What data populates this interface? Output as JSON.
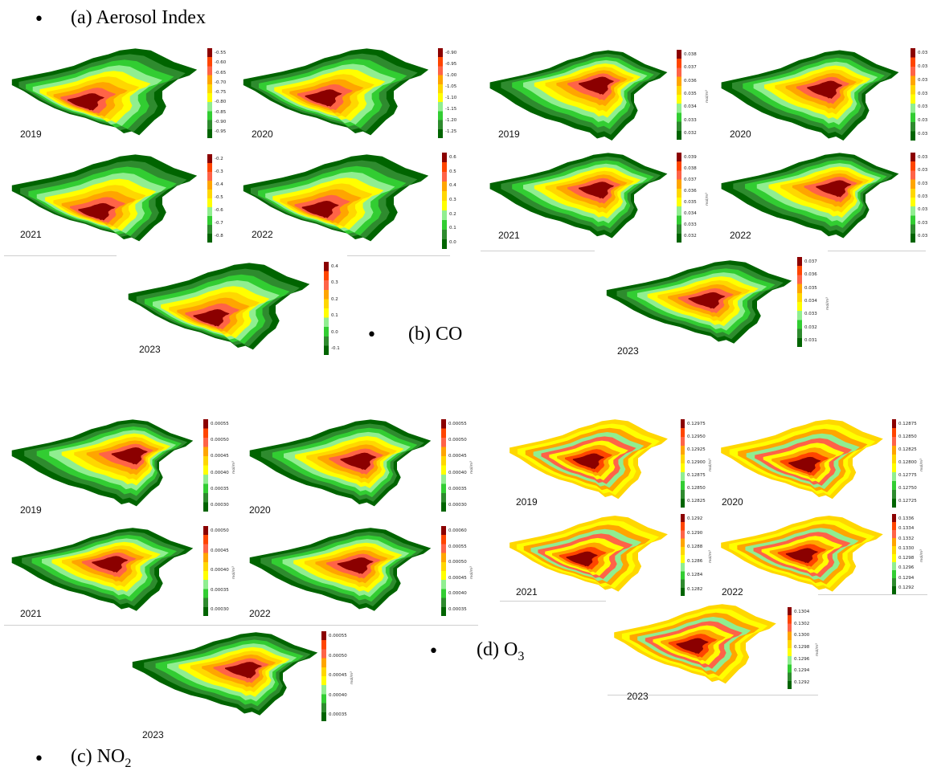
{
  "headings": {
    "aerosol": "(a) Aerosol Index",
    "co": "(b) CO",
    "no2_prefix": "(c) NO",
    "no2_sub": "2",
    "o3_prefix": "(d) O",
    "o3_sub": "3"
  },
  "palette": [
    "#006400",
    "#2e8b2e",
    "#32cd32",
    "#90ee90",
    "#ffff00",
    "#ffd700",
    "#ffa500",
    "#ff6347",
    "#ff4500",
    "#8b0000"
  ],
  "unit_label": "mol/m²",
  "groups": [
    {
      "id": "aerosol",
      "panels": [
        {
          "year": "2019",
          "ticks": [
            "-0.55",
            "-0.60",
            "-0.65",
            "-0.70",
            "-0.75",
            "-0.80",
            "-0.85",
            "-0.90",
            "-0.95"
          ]
        },
        {
          "year": "2020",
          "ticks": [
            "-0.90",
            "-0.95",
            "-1.00",
            "-1.05",
            "-1.10",
            "-1.15",
            "-1.20",
            "-1.25"
          ]
        },
        {
          "year": "2021",
          "ticks": [
            "-0.2",
            "-0.3",
            "-0.4",
            "-0.5",
            "-0.6",
            "-0.7",
            "-0.8"
          ]
        },
        {
          "year": "2022",
          "ticks": [
            "0.6",
            "0.5",
            "0.4",
            "0.3",
            "0.2",
            "0.1",
            "0.0"
          ]
        },
        {
          "year": "2023",
          "ticks": [
            "0.4",
            "0.3",
            "0.2",
            "0.1",
            "0.0",
            "-0.1"
          ]
        }
      ]
    },
    {
      "id": "co",
      "panels": [
        {
          "year": "2019",
          "ticks": [
            "0.038",
            "0.037",
            "0.036",
            "0.035",
            "0.034",
            "0.033",
            "0.032"
          ]
        },
        {
          "year": "2020",
          "ticks": [
            "0.03",
            "0.03",
            "0.03",
            "0.03",
            "0.03",
            "0.03",
            "0.03"
          ]
        },
        {
          "year": "2021",
          "ticks": [
            "0.039",
            "0.038",
            "0.037",
            "0.036",
            "0.035",
            "0.034",
            "0.033",
            "0.032"
          ]
        },
        {
          "year": "2022",
          "ticks": [
            "0.03",
            "0.03",
            "0.03",
            "0.03",
            "0.03",
            "0.03",
            "0.03"
          ]
        },
        {
          "year": "2023",
          "ticks": [
            "0.037",
            "0.036",
            "0.035",
            "0.034",
            "0.033",
            "0.032",
            "0.031"
          ]
        }
      ]
    },
    {
      "id": "no2",
      "panels": [
        {
          "year": "2019",
          "ticks": [
            "0.00055",
            "0.00050",
            "0.00045",
            "0.00040",
            "0.00035",
            "0.00030"
          ]
        },
        {
          "year": "2020",
          "ticks": [
            "0.00055",
            "0.00050",
            "0.00045",
            "0.00040",
            "0.00035",
            "0.00030"
          ]
        },
        {
          "year": "2021",
          "ticks": [
            "0.00050",
            "0.00045",
            "0.00040",
            "0.00035",
            "0.00030"
          ]
        },
        {
          "year": "2022",
          "ticks": [
            "0.00060",
            "0.00055",
            "0.00050",
            "0.00045",
            "0.00040",
            "0.00035"
          ]
        },
        {
          "year": "2023",
          "ticks": [
            "0.00055",
            "0.00050",
            "0.00045",
            "0.00040",
            "0.00035"
          ]
        }
      ]
    },
    {
      "id": "o3",
      "panels": [
        {
          "year": "2019",
          "ticks": [
            "0.12975",
            "0.12950",
            "0.12925",
            "0.12900",
            "0.12875",
            "0.12850",
            "0.12825"
          ]
        },
        {
          "year": "2020",
          "ticks": [
            "0.12875",
            "0.12850",
            "0.12825",
            "0.12800",
            "0.12775",
            "0.12750",
            "0.12725"
          ]
        },
        {
          "year": "2021",
          "ticks": [
            "0.1292",
            "0.1290",
            "0.1288",
            "0.1286",
            "0.1284",
            "0.1282"
          ]
        },
        {
          "year": "2022",
          "ticks": [
            "0.1336",
            "0.1334",
            "0.1332",
            "0.1330",
            "0.1298",
            "0.1296",
            "0.1294",
            "0.1292"
          ]
        },
        {
          "year": "2023",
          "ticks": [
            "0.1304",
            "0.1302",
            "0.1300",
            "0.1298",
            "0.1296",
            "0.1294",
            "0.1292"
          ]
        }
      ]
    }
  ]
}
